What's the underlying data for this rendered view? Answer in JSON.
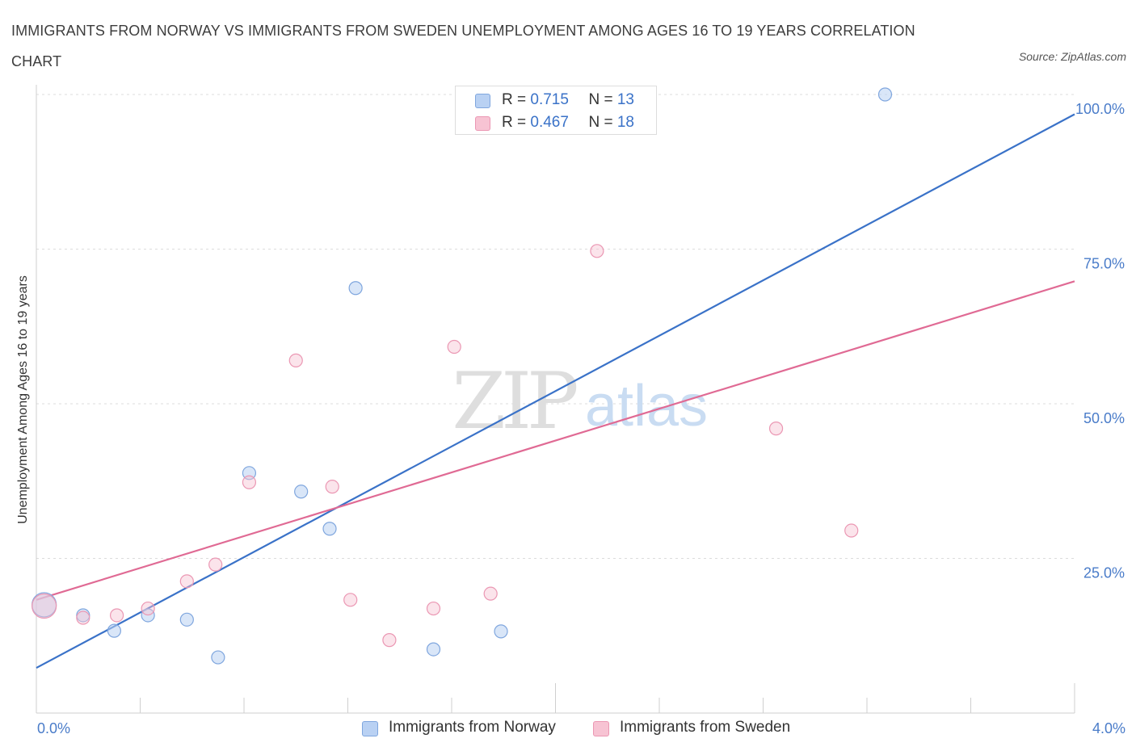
{
  "title": "IMMIGRANTS FROM NORWAY VS IMMIGRANTS FROM SWEDEN UNEMPLOYMENT AMONG AGES 16 TO 19 YEARS CORRELATION CHART",
  "source": "Source: ZipAtlas.com",
  "watermark": {
    "zip": "ZIP",
    "atlas": "atlas"
  },
  "colors": {
    "norway": "#3a72c8",
    "norway_fill": "#b9d1f3",
    "sweden": "#e06a94",
    "sweden_fill": "#f7c3d3",
    "tick": "#4a7cc9"
  },
  "legend": {
    "norway": {
      "r_label": "R = ",
      "r_value": "0.715",
      "n_label": "N = ",
      "n_value": "13"
    },
    "sweden": {
      "r_label": "R = ",
      "r_value": "0.467",
      "n_label": "N = ",
      "n_value": "18"
    }
  },
  "chart_data": {
    "type": "scatter",
    "title": "IMMIGRANTS FROM NORWAY VS IMMIGRANTS FROM SWEDEN UNEMPLOYMENT AMONG AGES 16 TO 19 YEARS CORRELATION CHART",
    "xlabel": "",
    "ylabel": "Unemployment Among Ages 16 to 19 years",
    "xlim": [
      0,
      4
    ],
    "ylim": [
      0,
      100
    ],
    "x_tick_labels": [
      "0.0%",
      "4.0%"
    ],
    "y_ticks": [
      25,
      50,
      75,
      100
    ],
    "y_tick_labels": [
      "25.0%",
      "50.0%",
      "75.0%",
      "100.0%"
    ],
    "grid": "horizontal dashed",
    "legend_position": "top-center and bottom",
    "series": [
      {
        "name": "Immigrants from Norway",
        "color": "#3a72c8",
        "points": [
          {
            "x": 0.03,
            "y": 17.5,
            "big": true
          },
          {
            "x": 0.18,
            "y": 15.8
          },
          {
            "x": 0.3,
            "y": 13.3
          },
          {
            "x": 0.43,
            "y": 15.8
          },
          {
            "x": 0.58,
            "y": 15.1
          },
          {
            "x": 0.7,
            "y": 9.0
          },
          {
            "x": 0.82,
            "y": 38.8
          },
          {
            "x": 1.02,
            "y": 35.8
          },
          {
            "x": 1.13,
            "y": 29.8
          },
          {
            "x": 1.23,
            "y": 68.7
          },
          {
            "x": 1.53,
            "y": 10.3
          },
          {
            "x": 1.79,
            "y": 13.2
          },
          {
            "x": 3.27,
            "y": 100.0
          }
        ],
        "trend": {
          "x": [
            0,
            4
          ],
          "y": [
            7.3,
            96.8
          ]
        }
      },
      {
        "name": "Immigrants from Sweden",
        "color": "#e06a94",
        "points": [
          {
            "x": 0.03,
            "y": 17.3,
            "big": true
          },
          {
            "x": 0.18,
            "y": 15.4
          },
          {
            "x": 0.31,
            "y": 15.8
          },
          {
            "x": 0.43,
            "y": 16.9
          },
          {
            "x": 0.58,
            "y": 21.3
          },
          {
            "x": 0.69,
            "y": 24.0
          },
          {
            "x": 0.82,
            "y": 37.3
          },
          {
            "x": 1.0,
            "y": 57.0
          },
          {
            "x": 1.14,
            "y": 36.6
          },
          {
            "x": 1.21,
            "y": 18.3
          },
          {
            "x": 1.36,
            "y": 11.8
          },
          {
            "x": 1.53,
            "y": 16.9
          },
          {
            "x": 1.61,
            "y": 59.2
          },
          {
            "x": 1.75,
            "y": 19.3
          },
          {
            "x": 2.0,
            "y": 100.0
          },
          {
            "x": 2.16,
            "y": 74.7
          },
          {
            "x": 2.85,
            "y": 46.0
          },
          {
            "x": 3.14,
            "y": 29.5
          }
        ],
        "trend": {
          "x": [
            0,
            4
          ],
          "y": [
            18.3,
            69.8
          ]
        }
      }
    ]
  }
}
